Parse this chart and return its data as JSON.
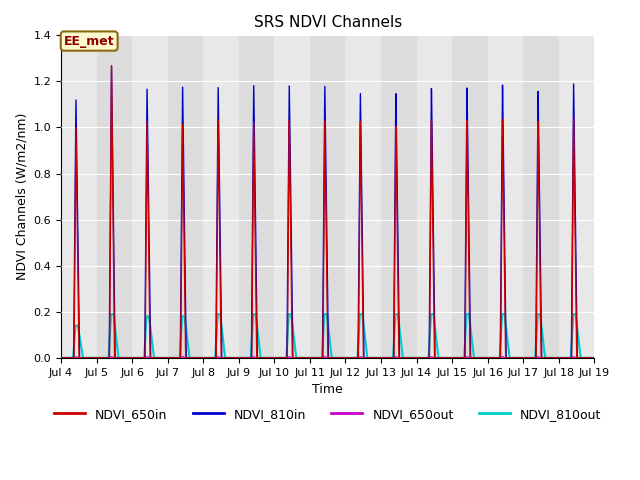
{
  "title": "SRS NDVI Channels",
  "xlabel": "Time",
  "ylabel": "NDVI Channels (W/m2/nm)",
  "annotation": "EE_met",
  "annotation_color": "#8B0000",
  "annotation_bg": "#FFFACD",
  "annotation_border": "#8B6914",
  "ylim": [
    0.0,
    1.4
  ],
  "yticks": [
    0.0,
    0.2,
    0.4,
    0.6,
    0.8,
    1.0,
    1.2,
    1.4
  ],
  "xtick_labels": [
    "Jul 4",
    "Jul 5",
    "Jul 6",
    "Jul 7",
    "Jul 8",
    "Jul 9",
    "Jul 10",
    "Jul 11",
    "Jul 12",
    "Jul 13",
    "Jul 14",
    "Jul 15",
    "Jul 16",
    "Jul 17",
    "Jul 18",
    "Jul 19"
  ],
  "line_colors": {
    "NDVI_650in": "#CC0000",
    "NDVI_810in": "#0000CC",
    "NDVI_650out": "#CC00CC",
    "NDVI_810out": "#00CCCC"
  },
  "line_widths": {
    "NDVI_650in": 1.0,
    "NDVI_810in": 1.0,
    "NDVI_650out": 1.0,
    "NDVI_810out": 1.5
  },
  "background_color": "#DCDCDC",
  "background_alt_color": "#E8E8E8",
  "grid_color": "#FFFFFF",
  "num_days": 15,
  "peak_650in": [
    1.0,
    1.27,
    1.03,
    1.02,
    1.04,
    1.03,
    1.04,
    1.04,
    1.04,
    1.02,
    1.04,
    1.04,
    1.04,
    1.03,
    1.04
  ],
  "peak_810in": [
    1.12,
    1.27,
    1.17,
    1.18,
    1.18,
    1.19,
    1.19,
    1.19,
    1.16,
    1.16,
    1.18,
    1.18,
    1.19,
    1.16,
    1.19
  ],
  "peak_810out": [
    0.14,
    0.19,
    0.18,
    0.18,
    0.19,
    0.19,
    0.19,
    0.19,
    0.19,
    0.19,
    0.19,
    0.19,
    0.19,
    0.19,
    0.19
  ]
}
